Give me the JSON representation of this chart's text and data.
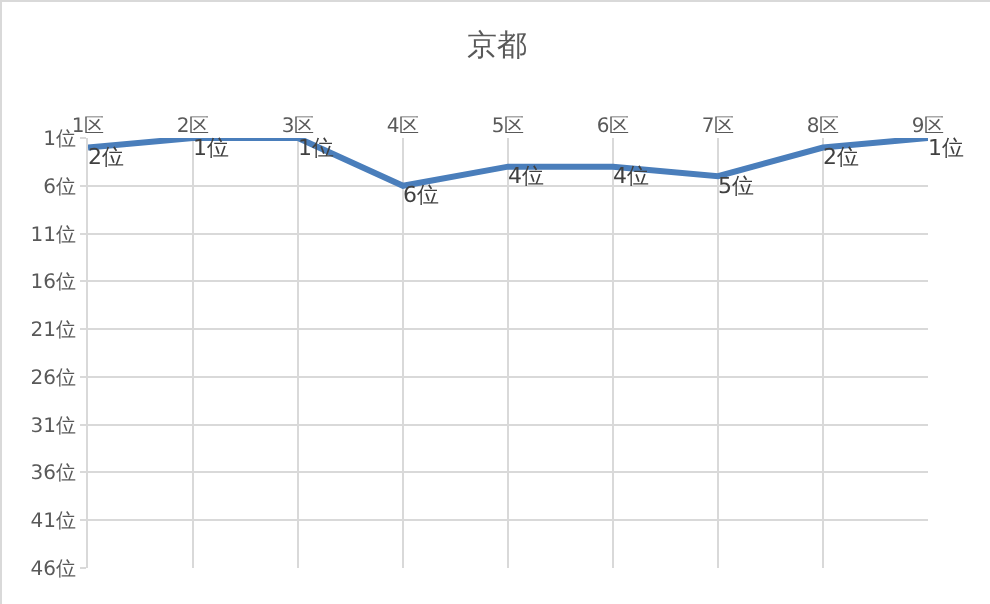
{
  "chart_data": {
    "type": "line",
    "title": "京都",
    "categories": [
      "1区",
      "2区",
      "3区",
      "4区",
      "5区",
      "6区",
      "7区",
      "8区",
      "9区"
    ],
    "series": [
      {
        "color": "#4a7ebb",
        "values": [
          2,
          1,
          1,
          6,
          4,
          4,
          5,
          2,
          1
        ],
        "value_labels": [
          "2位",
          "1位",
          "1位",
          "6位",
          "4位",
          "4位",
          "5位",
          "2位",
          "1位"
        ]
      }
    ],
    "ylim": [
      46,
      1
    ],
    "yticks": [
      {
        "value": 1,
        "label": "1位"
      },
      {
        "value": 6,
        "label": "6位"
      },
      {
        "value": 11,
        "label": "11位"
      },
      {
        "value": 16,
        "label": "16位"
      },
      {
        "value": 21,
        "label": "21位"
      },
      {
        "value": 26,
        "label": "26位"
      },
      {
        "value": 31,
        "label": "31位"
      },
      {
        "value": 36,
        "label": "36位"
      },
      {
        "value": 41,
        "label": "41位"
      },
      {
        "value": 46,
        "label": "46位"
      }
    ],
    "grid": true,
    "marker": "none",
    "line_style": "solid"
  }
}
